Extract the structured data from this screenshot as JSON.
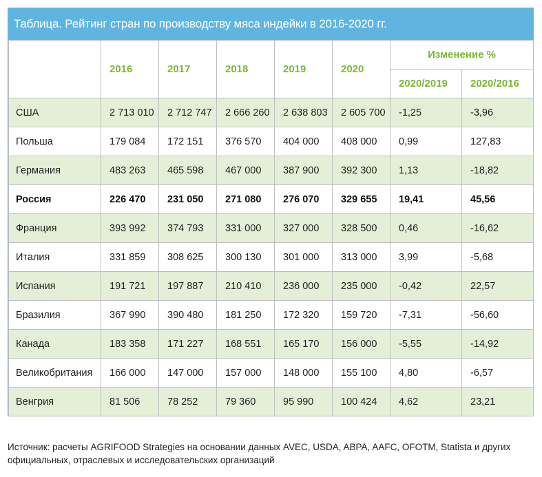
{
  "title": "Таблица. Рейтинг стран по производству мяса индейки в 2016-2020 гг.",
  "header": {
    "years": [
      "2016",
      "2017",
      "2018",
      "2019",
      "2020"
    ],
    "change_label": "Изменение %",
    "change_cols": [
      "2020/2019",
      "2020/2016"
    ]
  },
  "rows": [
    {
      "country": "США",
      "values": [
        "2 713 010",
        "2 712 747",
        "2 666 260",
        "2 638 803",
        "2 605 700"
      ],
      "chg_2020_2019": "-1,25",
      "chg_2020_2016": "-3,96"
    },
    {
      "country": "Польша",
      "values": [
        "179 084",
        "172 151",
        "376 570",
        "404 000",
        "408 000"
      ],
      "chg_2020_2019": "0,99",
      "chg_2020_2016": "127,83"
    },
    {
      "country": "Германия",
      "values": [
        "483 263",
        "465 598",
        "467 000",
        "387 900",
        "392 300"
      ],
      "chg_2020_2019": "1,13",
      "chg_2020_2016": "-18,82"
    },
    {
      "country": "Россия",
      "values": [
        "226 470",
        "231 050",
        "271 080",
        "276 070",
        "329 655"
      ],
      "chg_2020_2019": "19,41",
      "chg_2020_2016": "45,56"
    },
    {
      "country": "Франция",
      "values": [
        "393 992",
        "374 793",
        "331 000",
        "327 000",
        "328 500"
      ],
      "chg_2020_2019": "0,46",
      "chg_2020_2016": "-16,62"
    },
    {
      "country": "Италия",
      "values": [
        "331 859",
        "308 625",
        "300 130",
        "301 000",
        "313 000"
      ],
      "chg_2020_2019": "3,99",
      "chg_2020_2016": "-5,68"
    },
    {
      "country": "Испания",
      "values": [
        "191 721",
        "197 887",
        "210 410",
        "236 000",
        "235 000"
      ],
      "chg_2020_2019": "-0,42",
      "chg_2020_2016": "22,57"
    },
    {
      "country": "Бразилия",
      "values": [
        "367 990",
        "390 480",
        "181 250",
        "172 320",
        "159 720"
      ],
      "chg_2020_2019": "-7,31",
      "chg_2020_2016": "-56,60"
    },
    {
      "country": "Канада",
      "values": [
        "183 358",
        "171 227",
        "168 551",
        "165 170",
        "156 000"
      ],
      "chg_2020_2019": "-5,55",
      "chg_2020_2016": "-14,92"
    },
    {
      "country": "Великобритания",
      "values": [
        "166 000",
        "147 000",
        "157 000",
        "148 000",
        "155 100"
      ],
      "chg_2020_2019": "4,80",
      "chg_2020_2016": "-6,57"
    },
    {
      "country": "Венгрия",
      "values": [
        "81 506",
        "78 252",
        "79 360",
        "95 990",
        "100 424"
      ],
      "chg_2020_2019": "4,62",
      "chg_2020_2016": "23,21"
    }
  ],
  "highlight_country": "Россия",
  "source": "Источник: расчеты AGRIFOOD Strategies на основании данных AVEC, USDA, ABPA, AAFC, OFOTM, Statista и других официальных, отраслевых и исследовательских организаций",
  "colors": {
    "title_bar": "#5fb5e0",
    "header_text": "#7ab833",
    "row_band": "#e5efd8",
    "grid": "#bfbfbf"
  }
}
